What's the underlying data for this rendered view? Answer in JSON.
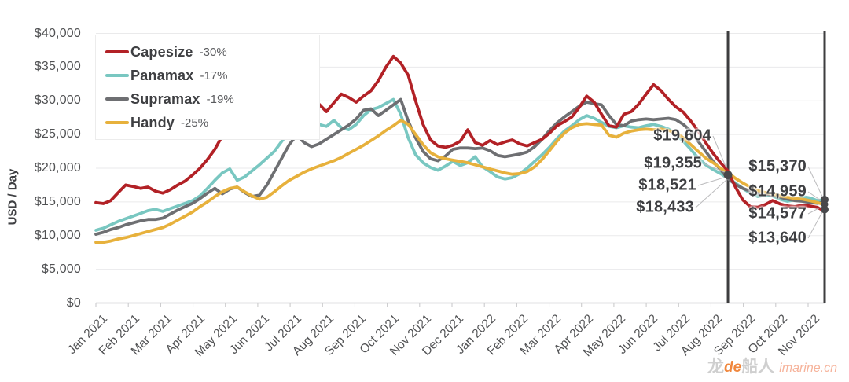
{
  "chart_data": {
    "type": "line",
    "ylabel": "USD / Day",
    "ylim": [
      0,
      40000
    ],
    "grid": true,
    "legend_position": "top-left",
    "yticks": [
      [
        0,
        "$0"
      ],
      [
        5000,
        "$5,000"
      ],
      [
        10000,
        "$10,000"
      ],
      [
        15000,
        "$15,000"
      ],
      [
        20000,
        "$20,000"
      ],
      [
        25000,
        "$25,000"
      ],
      [
        30000,
        "$30,000"
      ],
      [
        35000,
        "$35,000"
      ],
      [
        40000,
        "$40,000"
      ]
    ],
    "x_categories": [
      "Jan 2021",
      "Feb 2021",
      "Mar 2021",
      "Apr 2021",
      "May 2021",
      "Jun 2021",
      "Jul 2021",
      "Aug 2021",
      "Sep 2021",
      "Oct 2021",
      "Nov 2021",
      "Dec 2021",
      "Jan 2022",
      "Feb 2022",
      "Mar 2022",
      "Apr 2022",
      "May 2022",
      "Jun 2022",
      "Jul 2022",
      "Aug 2022",
      "Sep 2022",
      "Oct 2022",
      "Nov 2022"
    ],
    "series": [
      {
        "name": "Capesize",
        "change": "-30%",
        "color": "#b22126",
        "values": [
          14900,
          14750,
          15200,
          16400,
          17500,
          17300,
          17000,
          17200,
          16600,
          16300,
          16800,
          17500,
          18100,
          19000,
          20000,
          21300,
          22800,
          24800,
          27200,
          29400,
          29600,
          27600,
          26200,
          28500,
          31200,
          30400,
          29400,
          29600,
          29400,
          28900,
          29500,
          28400,
          29700,
          31000,
          30500,
          29800,
          30700,
          31500,
          33000,
          35000,
          36600,
          35600,
          33800,
          30000,
          26500,
          24200,
          23300,
          23100,
          23400,
          24000,
          25700,
          23800,
          23400,
          24100,
          23500,
          23900,
          24200,
          23600,
          23300,
          23800,
          24300,
          25200,
          26300,
          26900,
          27600,
          29000,
          30700,
          29800,
          28000,
          26300,
          26100,
          28000,
          28400,
          29500,
          31000,
          32400,
          31500,
          30200,
          29100,
          28300,
          27000,
          25500,
          23800,
          22200,
          20800,
          19604,
          17200,
          15300,
          14300,
          14200,
          14600,
          15200,
          14700,
          14400,
          14300,
          14500,
          14400,
          14200,
          13640
        ]
      },
      {
        "name": "Panamax",
        "change": "-17%",
        "color": "#79c7c1",
        "values": [
          10800,
          11100,
          11600,
          12100,
          12500,
          12900,
          13300,
          13700,
          13900,
          13600,
          14000,
          14400,
          14800,
          15200,
          15900,
          17000,
          18200,
          19300,
          19900,
          18200,
          18700,
          19600,
          20500,
          21500,
          22500,
          24000,
          25500,
          27000,
          28000,
          27200,
          26500,
          26200,
          27100,
          26000,
          25700,
          26500,
          27800,
          28700,
          29000,
          29600,
          30200,
          28000,
          24500,
          22000,
          20800,
          20100,
          19700,
          20300,
          21000,
          20400,
          20800,
          21700,
          20200,
          19500,
          18700,
          18400,
          18600,
          19200,
          20000,
          21000,
          22000,
          23100,
          24400,
          25500,
          26300,
          27200,
          27800,
          27400,
          26800,
          26200,
          26000,
          26300,
          26100,
          26000,
          26300,
          26500,
          26200,
          25800,
          25000,
          24000,
          22800,
          21500,
          20500,
          19800,
          19200,
          18521,
          17800,
          17000,
          16300,
          15800,
          16000,
          15900,
          15400,
          15100,
          15300,
          15800,
          15600,
          15200,
          15370
        ]
      },
      {
        "name": "Supramax",
        "change": "-19%",
        "color": "#6e6f72",
        "values": [
          10200,
          10500,
          10900,
          11200,
          11600,
          11900,
          12200,
          12400,
          12400,
          12600,
          13200,
          13800,
          14300,
          14800,
          15500,
          16300,
          17000,
          16200,
          16900,
          17200,
          16400,
          15800,
          16000,
          17500,
          19500,
          21500,
          23500,
          24900,
          23800,
          23200,
          23600,
          24300,
          25000,
          25700,
          26400,
          27300,
          28600,
          28800,
          27800,
          28600,
          29400,
          30200,
          27000,
          24500,
          22500,
          21400,
          21100,
          21800,
          22800,
          23000,
          23000,
          22900,
          23000,
          22600,
          21900,
          21700,
          21900,
          22100,
          22400,
          23200,
          24300,
          25600,
          26700,
          27600,
          28400,
          29200,
          29800,
          29600,
          29400,
          27800,
          26500,
          26300,
          27000,
          27200,
          27300,
          27200,
          27300,
          27400,
          27200,
          26500,
          25500,
          24000,
          22500,
          21000,
          19800,
          18433,
          17600,
          17000,
          16600,
          16300,
          16200,
          16000,
          15700,
          15400,
          15200,
          15100,
          14900,
          14800,
          14959
        ]
      },
      {
        "name": "Handy",
        "change": "-25%",
        "color": "#e7b13c",
        "values": [
          9000,
          9000,
          9200,
          9500,
          9700,
          10000,
          10300,
          10600,
          10900,
          11200,
          11700,
          12300,
          12900,
          13500,
          14300,
          15000,
          15800,
          16500,
          17000,
          17200,
          16500,
          15900,
          15400,
          15700,
          16500,
          17400,
          18200,
          18800,
          19400,
          19900,
          20300,
          20700,
          21100,
          21600,
          22200,
          22800,
          23400,
          24100,
          24800,
          25600,
          26300,
          27100,
          26500,
          25000,
          23500,
          22300,
          21700,
          21400,
          21200,
          21000,
          20800,
          20500,
          20200,
          19900,
          19600,
          19300,
          19100,
          19200,
          19500,
          20200,
          21300,
          22600,
          24000,
          25200,
          26000,
          26500,
          26600,
          26500,
          26400,
          24900,
          24600,
          25200,
          25500,
          25700,
          25800,
          25700,
          25800,
          25600,
          25200,
          24500,
          23500,
          22500,
          21500,
          20800,
          20000,
          19355,
          18500,
          17800,
          17200,
          16700,
          16400,
          16200,
          15900,
          15700,
          15500,
          15400,
          15200,
          14900,
          14577
        ]
      }
    ],
    "marker_vline_indices": [
      85,
      98
    ],
    "callouts": [
      {
        "text": "$19,604",
        "series": "Capesize",
        "at": "vline1"
      },
      {
        "text": "$19,355",
        "series": "Handy",
        "at": "vline1"
      },
      {
        "text": "$18,521",
        "series": "Panamax",
        "at": "vline1"
      },
      {
        "text": "$18,433",
        "series": "Supramax",
        "at": "vline1"
      },
      {
        "text": "$15,370",
        "series": "Panamax",
        "at": "end"
      },
      {
        "text": "$14,959",
        "series": "Supramax",
        "at": "end"
      },
      {
        "text": "$14,577",
        "series": "Handy",
        "at": "end"
      },
      {
        "text": "$13,640",
        "series": "Capesize",
        "at": "end"
      }
    ]
  },
  "watermark": {
    "cjk_left": "龙",
    "de": "de",
    "cjk_right": "船人",
    "site": "imarine.cn"
  }
}
